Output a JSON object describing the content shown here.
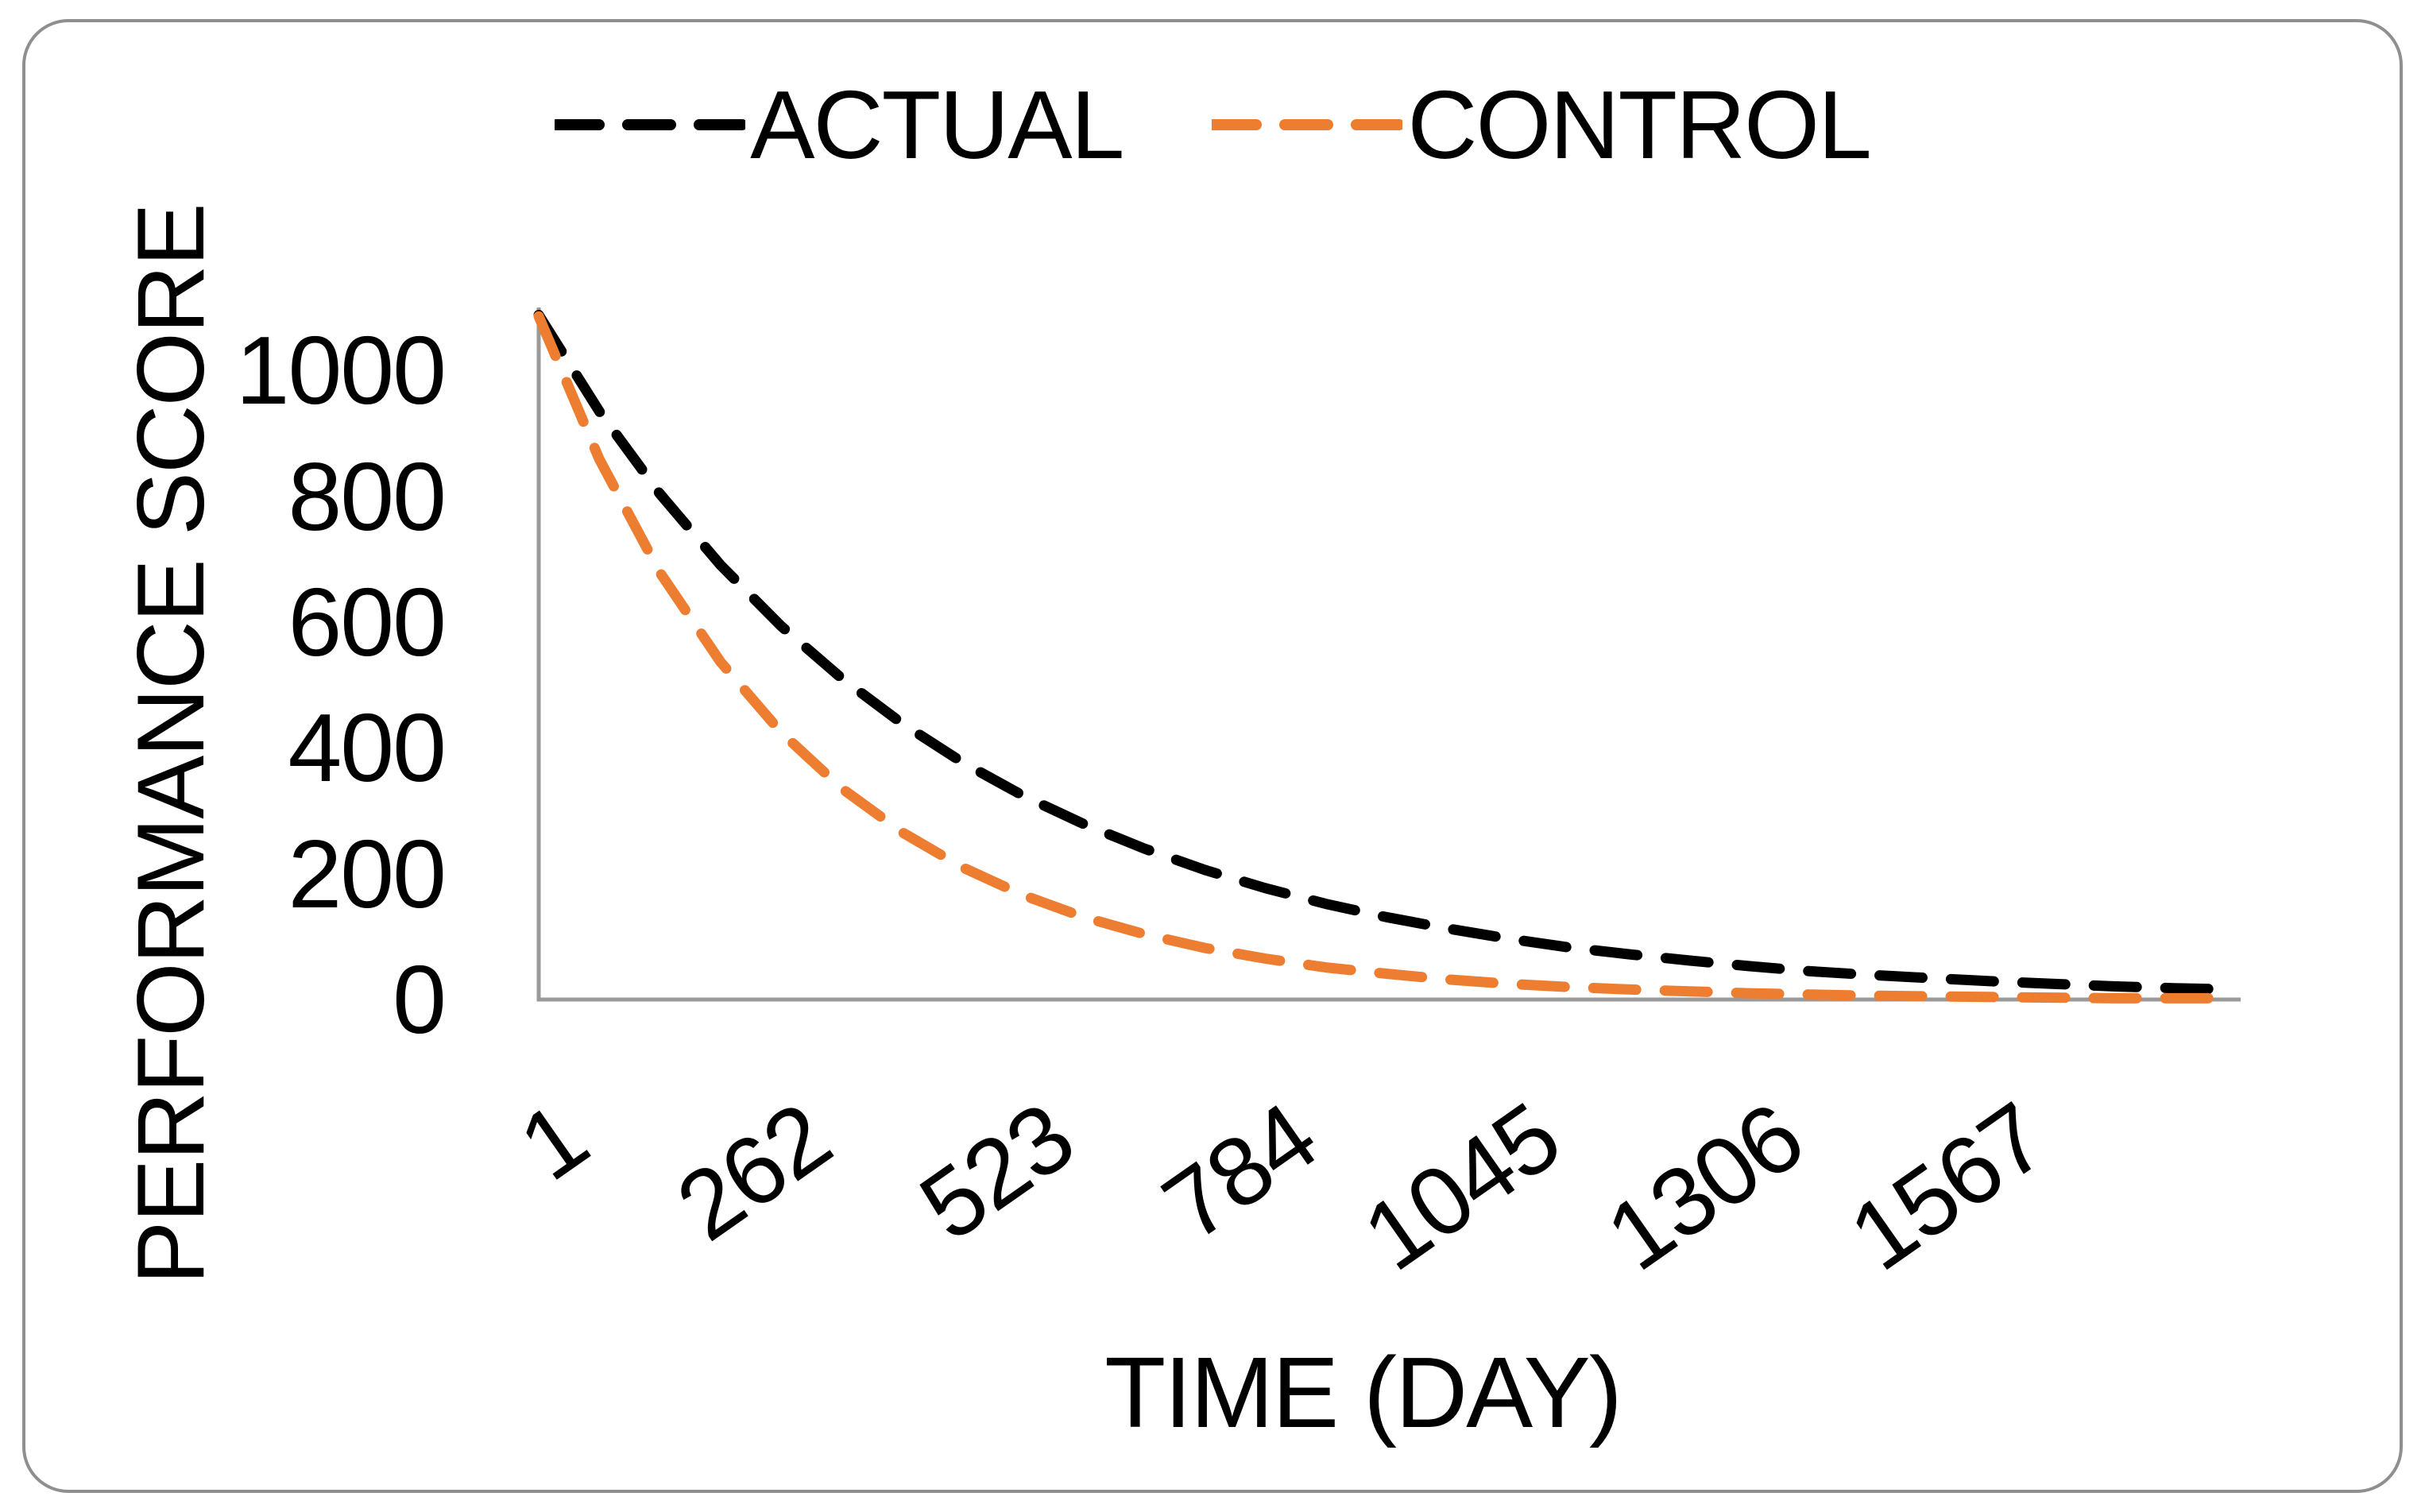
{
  "chart_data": {
    "type": "line",
    "title": "",
    "xlabel": "TIME (DAY)",
    "ylabel": "PERFORMANCE SCORE",
    "legend_position": "top",
    "grid": false,
    "axis_color": "#9a9a9a",
    "xlim": [
      1,
      1828
    ],
    "ylim": [
      0,
      1100
    ],
    "x_ticks": [
      1,
      262,
      523,
      784,
      1045,
      1306,
      1567
    ],
    "y_ticks": [
      0,
      200,
      400,
      600,
      800,
      1000
    ],
    "x": [
      1,
      66,
      131,
      196,
      261,
      326,
      391,
      456,
      521,
      586,
      651,
      716,
      781,
      846,
      911,
      976,
      1041,
      1106,
      1171,
      1236,
      1301,
      1366,
      1431,
      1496,
      1561,
      1626,
      1691,
      1756,
      1821
    ],
    "series": [
      {
        "name": "ACTUAL",
        "color": "#000000",
        "line_style": "dashed",
        "values": [
          1088,
          935,
          804,
          691,
          594,
          511,
          439,
          377,
          324,
          279,
          240,
          206,
          177,
          152,
          131,
          113,
          97,
          83,
          72,
          62,
          53,
          45,
          39,
          34,
          29,
          25,
          21,
          18,
          16
        ]
      },
      {
        "name": "CONTROL",
        "color": "#ED7D31",
        "line_style": "dashed",
        "values": [
          1086,
          859,
          679,
          537,
          425,
          336,
          266,
          210,
          166,
          131,
          104,
          82,
          65,
          51,
          41,
          32,
          25,
          20,
          16,
          13,
          10,
          8,
          6,
          5,
          4,
          3,
          2,
          2,
          2
        ]
      }
    ]
  }
}
